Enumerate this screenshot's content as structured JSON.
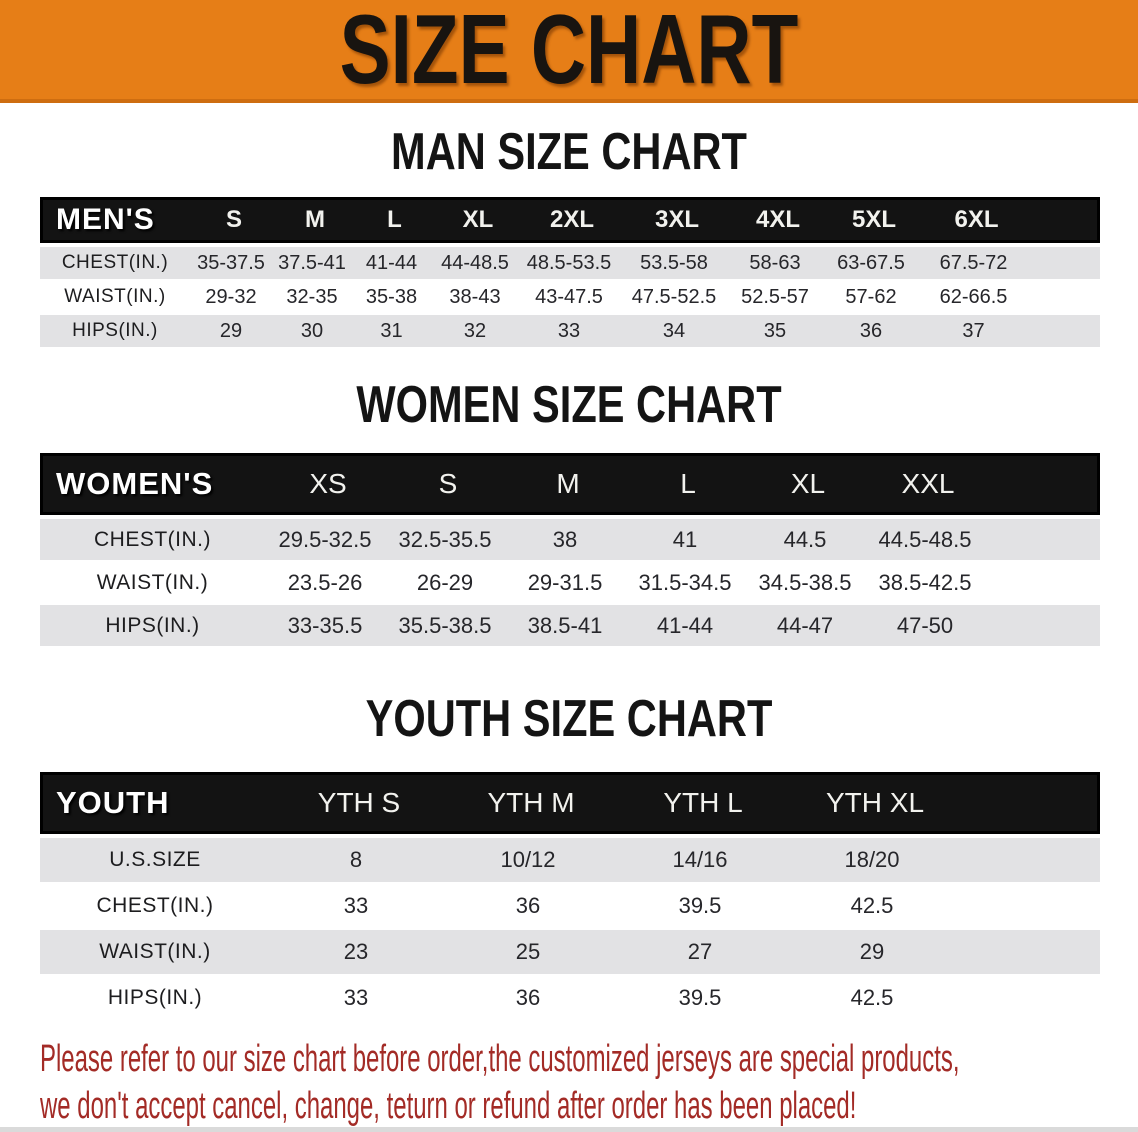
{
  "banner": {
    "title": "SIZE CHART"
  },
  "headings": {
    "men": "MAN SIZE CHART",
    "women": "WOMEN SIZE CHART",
    "youth": "YOUTH SIZE CHART"
  },
  "tables": {
    "men": {
      "label": "MEN'S",
      "columns": [
        "S",
        "M",
        "L",
        "XL",
        "2XL",
        "3XL",
        "4XL",
        "5XL",
        "6XL"
      ],
      "rows": [
        {
          "label": "CHEST(IN.)",
          "values": [
            "35-37.5",
            "37.5-41",
            "41-44",
            "44-48.5",
            "48.5-53.5",
            "53.5-58",
            "58-63",
            "63-67.5",
            "67.5-72"
          ]
        },
        {
          "label": "WAIST(IN.)",
          "values": [
            "29-32",
            "32-35",
            "35-38",
            "38-43",
            "43-47.5",
            "47.5-52.5",
            "52.5-57",
            "57-62",
            "62-66.5"
          ]
        },
        {
          "label": "HIPS(IN.)",
          "values": [
            "29",
            "30",
            "31",
            "32",
            "33",
            "34",
            "35",
            "36",
            "37"
          ]
        }
      ]
    },
    "women": {
      "label": "WOMEN'S",
      "columns": [
        "XS",
        "S",
        "M",
        "L",
        "XL",
        "XXL"
      ],
      "rows": [
        {
          "label": "CHEST(IN.)",
          "values": [
            "29.5-32.5",
            "32.5-35.5",
            "38",
            "41",
            "44.5",
            "44.5-48.5"
          ]
        },
        {
          "label": "WAIST(IN.)",
          "values": [
            "23.5-26",
            "26-29",
            "29-31.5",
            "31.5-34.5",
            "34.5-38.5",
            "38.5-42.5"
          ]
        },
        {
          "label": "HIPS(IN.)",
          "values": [
            "33-35.5",
            "35.5-38.5",
            "38.5-41",
            "41-44",
            "44-47",
            "47-50"
          ]
        }
      ]
    },
    "youth": {
      "label": "YOUTH",
      "columns": [
        "YTH S",
        "YTH M",
        "YTH L",
        "YTH XL"
      ],
      "rows": [
        {
          "label": "U.S.SIZE",
          "values": [
            "8",
            "10/12",
            "14/16",
            "18/20"
          ]
        },
        {
          "label": "CHEST(IN.)",
          "values": [
            "33",
            "36",
            "39.5",
            "42.5"
          ]
        },
        {
          "label": "WAIST(IN.)",
          "values": [
            "23",
            "25",
            "27",
            "29"
          ]
        },
        {
          "label": "HIPS(IN.)",
          "values": [
            "33",
            "36",
            "39.5",
            "42.5"
          ]
        }
      ]
    }
  },
  "disclaimer": {
    "text": "Please refer to our size chart before order,the customized jerseys are special products,\nwe don't accept cancel, change, teturn or refund after order has been placed!"
  },
  "colors": {
    "banner_orange": "#E67E17",
    "header_black": "#131313",
    "row_gray": "#E2E2E4",
    "disclaimer_red": "#A32B26"
  }
}
